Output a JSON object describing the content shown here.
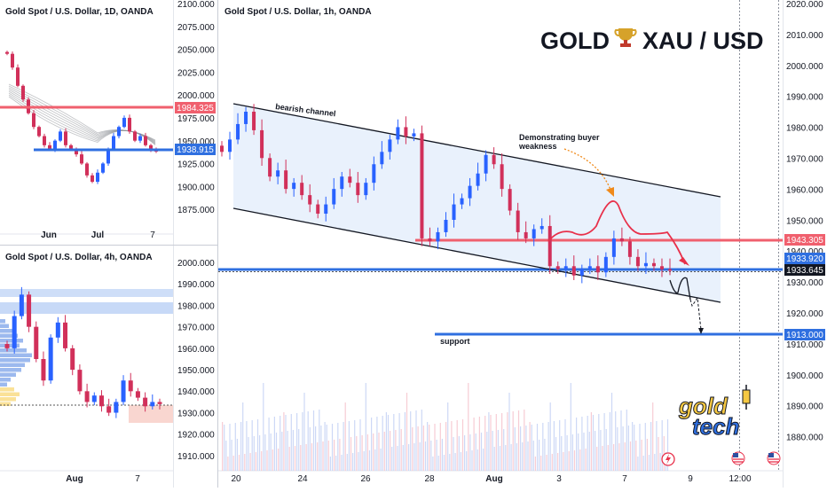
{
  "panels": {
    "daily": {
      "title": "Gold Spot / U.S. Dollar, 1D, OANDA",
      "ticks": [
        "2100.000",
        "2075.000",
        "2050.000",
        "2025.000",
        "2000.000",
        "1975.000",
        "1950.000",
        "1925.000",
        "1900.000",
        "1875.000"
      ],
      "price_labels": [
        "1984.325",
        "1938.915"
      ],
      "dates": [
        "Jun",
        "Jul",
        "7"
      ]
    },
    "four_hour": {
      "title": "Gold Spot / U.S. Dollar, 4h, OANDA",
      "ticks": [
        "2000.000",
        "1990.000",
        "1980.000",
        "1970.000",
        "1960.000",
        "1950.000",
        "1940.000",
        "1930.000",
        "1920.000",
        "1910.000"
      ],
      "dates": [
        "Aug",
        "7"
      ]
    },
    "hourly": {
      "title": "Gold Spot / U.S. Dollar, 1h, OANDA",
      "heading": "GOLD",
      "heading_pair": "XAU / USD",
      "ticks": [
        "2020.000",
        "2010.000",
        "2000.000",
        "1990.000",
        "1980.000",
        "1970.000",
        "1960.000",
        "1950.000",
        "1940.000",
        "1930.000",
        "1920.000",
        "1910.000",
        "1900.000",
        "1890.000",
        "1880.000"
      ],
      "price_labels": {
        "resistance": "1943.305",
        "mid": "1933.920",
        "current": "1933.645",
        "support": "1913.000"
      },
      "dates": [
        "20",
        "24",
        "26",
        "28",
        "Aug",
        "3",
        "7",
        "9",
        "12:00"
      ],
      "annotations": {
        "channel": "bearish channel",
        "buyers_line1": "Demonstrating buyer",
        "buyers_line2": "weakness",
        "support": "support"
      },
      "logo_top": "gold",
      "logo_bottom": "tech"
    }
  },
  "colors": {
    "red": "#f0606e",
    "blue": "#2f6fe0",
    "up": "#2962ff",
    "down": "#d1305a",
    "channel_fill": "#e9f1fc",
    "yellow": "#f5c842"
  },
  "chart_data": [
    {
      "type": "candlestick",
      "title": "Gold Spot / U.S. Dollar, 1D, OANDA",
      "x_labels": [
        "Jun",
        "Jul",
        "7"
      ],
      "ylim": [
        1860,
        2100
      ],
      "horizontal_levels": [
        1984.325,
        1938.915
      ],
      "close_approx": [
        2045,
        2030,
        2010,
        1995,
        1980,
        1965,
        1955,
        1945,
        1940,
        1950,
        1960,
        1945,
        1940,
        1935,
        1925,
        1912,
        1905,
        1915,
        1925,
        1940,
        1955,
        1965,
        1975,
        1960,
        1950,
        1955,
        1945,
        1940,
        1938
      ]
    },
    {
      "type": "candlestick",
      "title": "Gold Spot / U.S. Dollar, 4h, OANDA",
      "x_labels": [
        "Aug",
        "7"
      ],
      "ylim": [
        1905,
        2005
      ],
      "close_approx": [
        1960,
        1975,
        1985,
        1970,
        1955,
        1945,
        1965,
        1972,
        1960,
        1950,
        1940,
        1935,
        1938,
        1933,
        1930,
        1935,
        1945,
        1940,
        1937,
        1933,
        1935,
        1934
      ]
    },
    {
      "type": "candlestick",
      "title": "Gold Spot / U.S. Dollar, 1h, OANDA",
      "x_labels": [
        "20",
        "24",
        "26",
        "28",
        "Aug",
        "3",
        "7",
        "9",
        "12:00"
      ],
      "ylim": [
        1875,
        2022
      ],
      "horizontal_levels": [
        1943.305,
        1933.92,
        1933.645,
        1913.0
      ],
      "close_approx": [
        1972,
        1976,
        1981,
        1985,
        1979,
        1970,
        1964,
        1966,
        1960,
        1962,
        1958,
        1955,
        1952,
        1955,
        1960,
        1964,
        1962,
        1958,
        1962,
        1968,
        1972,
        1976,
        1980,
        1977,
        1978,
        1944,
        1943,
        1946,
        1950,
        1955,
        1957,
        1961,
        1965,
        1971,
        1968,
        1960,
        1953,
        1946,
        1944,
        1947,
        1948,
        1935,
        1934,
        1935,
        1932,
        1934,
        1935,
        1933,
        1938,
        1944,
        1943,
        1938,
        1935,
        1936,
        1935,
        1934,
        1933.6
      ]
    }
  ]
}
